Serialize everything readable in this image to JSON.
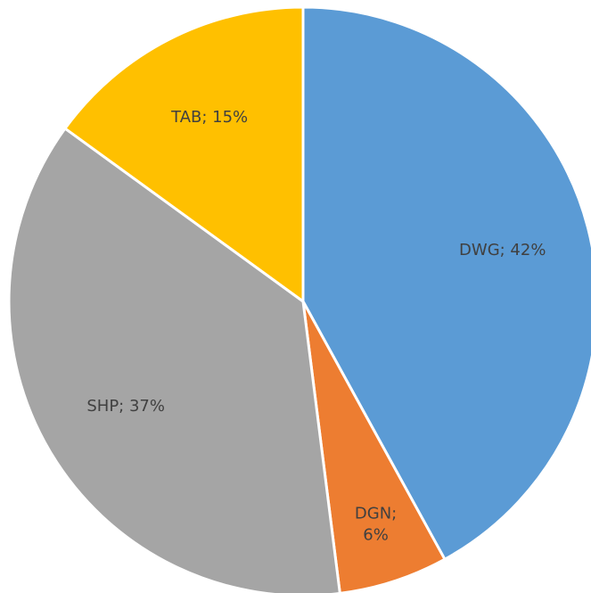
{
  "chart_data": {
    "type": "pie",
    "values": [
      42,
      6,
      37,
      15
    ],
    "value_labels": [
      "DWG; 42%",
      "DGN; 6%",
      "SHP; 37%",
      "TAB; 15%"
    ],
    "colors": [
      "#5b9bd5",
      "#ed7d31",
      "#a5a5a5",
      "#ffc000"
    ]
  }
}
